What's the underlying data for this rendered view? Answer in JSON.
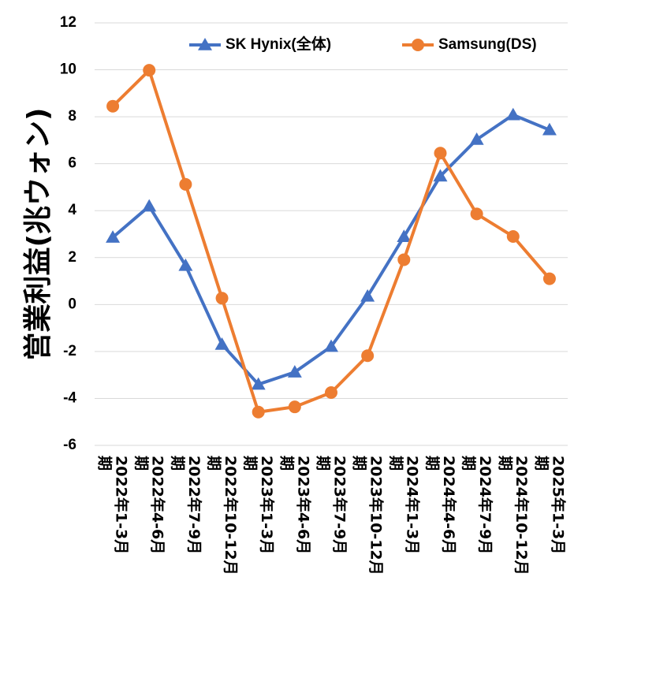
{
  "chart_data": {
    "type": "line",
    "ylabel": "営業利益(兆ウォン)",
    "xlabel": "",
    "title": "",
    "ylim": [
      -6,
      12
    ],
    "yticks": [
      -6,
      -4,
      -2,
      0,
      2,
      4,
      6,
      8,
      10,
      12
    ],
    "ytick_labels": [
      "-6",
      "-4",
      "-2",
      "0",
      "2",
      "4",
      "6",
      "8",
      "10",
      "12"
    ],
    "grid": true,
    "legend_position": "top",
    "categories": [
      "2022年1-3月期",
      "2022年4-6月期",
      "2022年7-9月期",
      "2022年10-12月期",
      "2023年1-3月期",
      "2023年4-6月期",
      "2023年7-9月期",
      "2023年10-12月期",
      "2024年1-3月期",
      "2024年4-6月期",
      "2024年7-9月期",
      "2024年10-12月期",
      "2025年1-3月期"
    ],
    "series": [
      {
        "name": "SK Hynix(全体)",
        "color": "#4472c4",
        "marker": "triangle",
        "values": [
          2.86,
          4.19,
          1.66,
          -1.7,
          -3.4,
          -2.88,
          -1.79,
          0.35,
          2.89,
          5.47,
          7.03,
          8.08,
          7.44
        ]
      },
      {
        "name": "Samsung(DS)",
        "color": "#ed7d31",
        "marker": "circle",
        "values": [
          8.45,
          9.98,
          5.12,
          0.27,
          -4.58,
          -4.36,
          -3.75,
          -2.18,
          1.91,
          6.45,
          3.86,
          2.9,
          1.1
        ]
      }
    ]
  }
}
